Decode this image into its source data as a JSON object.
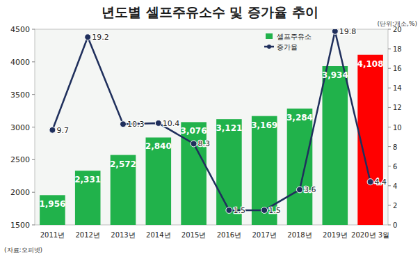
{
  "chart_data": {
    "type": "bar",
    "title": "년도별 셀프주유소수 및 증가율 추이",
    "annotations": [
      "(단위:개소,%)",
      "(자료:오피넷)"
    ],
    "categories": [
      "2011년",
      "2012년",
      "2013년",
      "2014년",
      "2015년",
      "2016년",
      "2017년",
      "2018년",
      "2019년",
      "2020년 3월"
    ],
    "series": [
      {
        "name": "셀프주유소",
        "type": "bar",
        "colors": [
          "#21b24b",
          "#21b24b",
          "#21b24b",
          "#21b24b",
          "#21b24b",
          "#21b24b",
          "#21b24b",
          "#21b24b",
          "#21b24b",
          "#ff0000"
        ],
        "values": [
          1956,
          2331,
          2572,
          2840,
          3076,
          3121,
          3169,
          3284,
          3934,
          4108
        ],
        "value_labels": [
          "1,956",
          "2,331",
          "2,572",
          "2,840",
          "3,076",
          "3,121",
          "3,169",
          "3,284",
          "3,934",
          "4,108"
        ]
      },
      {
        "name": "증가율",
        "type": "line",
        "axis": "y2",
        "color": "#1f2f5c",
        "marker": "circle",
        "values": [
          9.7,
          19.2,
          10.3,
          10.4,
          8.3,
          1.5,
          1.5,
          3.6,
          19.8,
          4.4
        ]
      }
    ],
    "ylim": [
      1500,
      4500
    ],
    "yticks": [
      1500,
      2000,
      2500,
      3000,
      3500,
      4000,
      4500
    ],
    "y2lim": [
      0,
      20
    ],
    "y2ticks": [
      0,
      2,
      4,
      6,
      8,
      10,
      12,
      14,
      16,
      18,
      20
    ],
    "grid": false,
    "legend": "top",
    "data_labels": true
  }
}
